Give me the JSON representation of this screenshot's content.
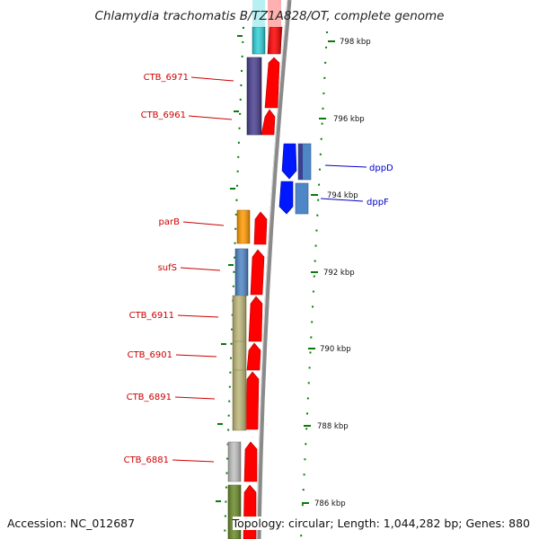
{
  "title": "Chlamydia trachomatis B/TZ1A828/OT, complete genome",
  "accession": "Accession: NC_012687",
  "summary": "Topology: circular; Length: 1,044,282 bp; Genes: 880",
  "scale_labels": [
    "798 kbp",
    "796 kbp",
    "794 kbp",
    "792 kbp",
    "790 kbp",
    "788 kbp",
    "786 kbp"
  ],
  "gene_labels_left": [
    "CTB_6971",
    "CTB_6961",
    "parB",
    "sufS",
    "CTB_6911",
    "CTB_6901",
    "CTB_6891",
    "CTB_6881"
  ],
  "gene_labels_right": [
    "dppD",
    "dppF"
  ],
  "colors": {
    "backbone": "#8a8a8a",
    "cds_red": "#ff0000",
    "label_left": "#cc0000",
    "label_right": "#0000cc",
    "tick_green": "#0a7a0a",
    "dpp_blue": "#0018ff",
    "steelblue": "#4f86c6",
    "cyan": "#30d0d8",
    "purple": "#4a3f8f",
    "orange": "#ff9a00",
    "khaki": "#bdb77a",
    "grey": "#c0c0c0",
    "olive": "#6a8a2a"
  }
}
